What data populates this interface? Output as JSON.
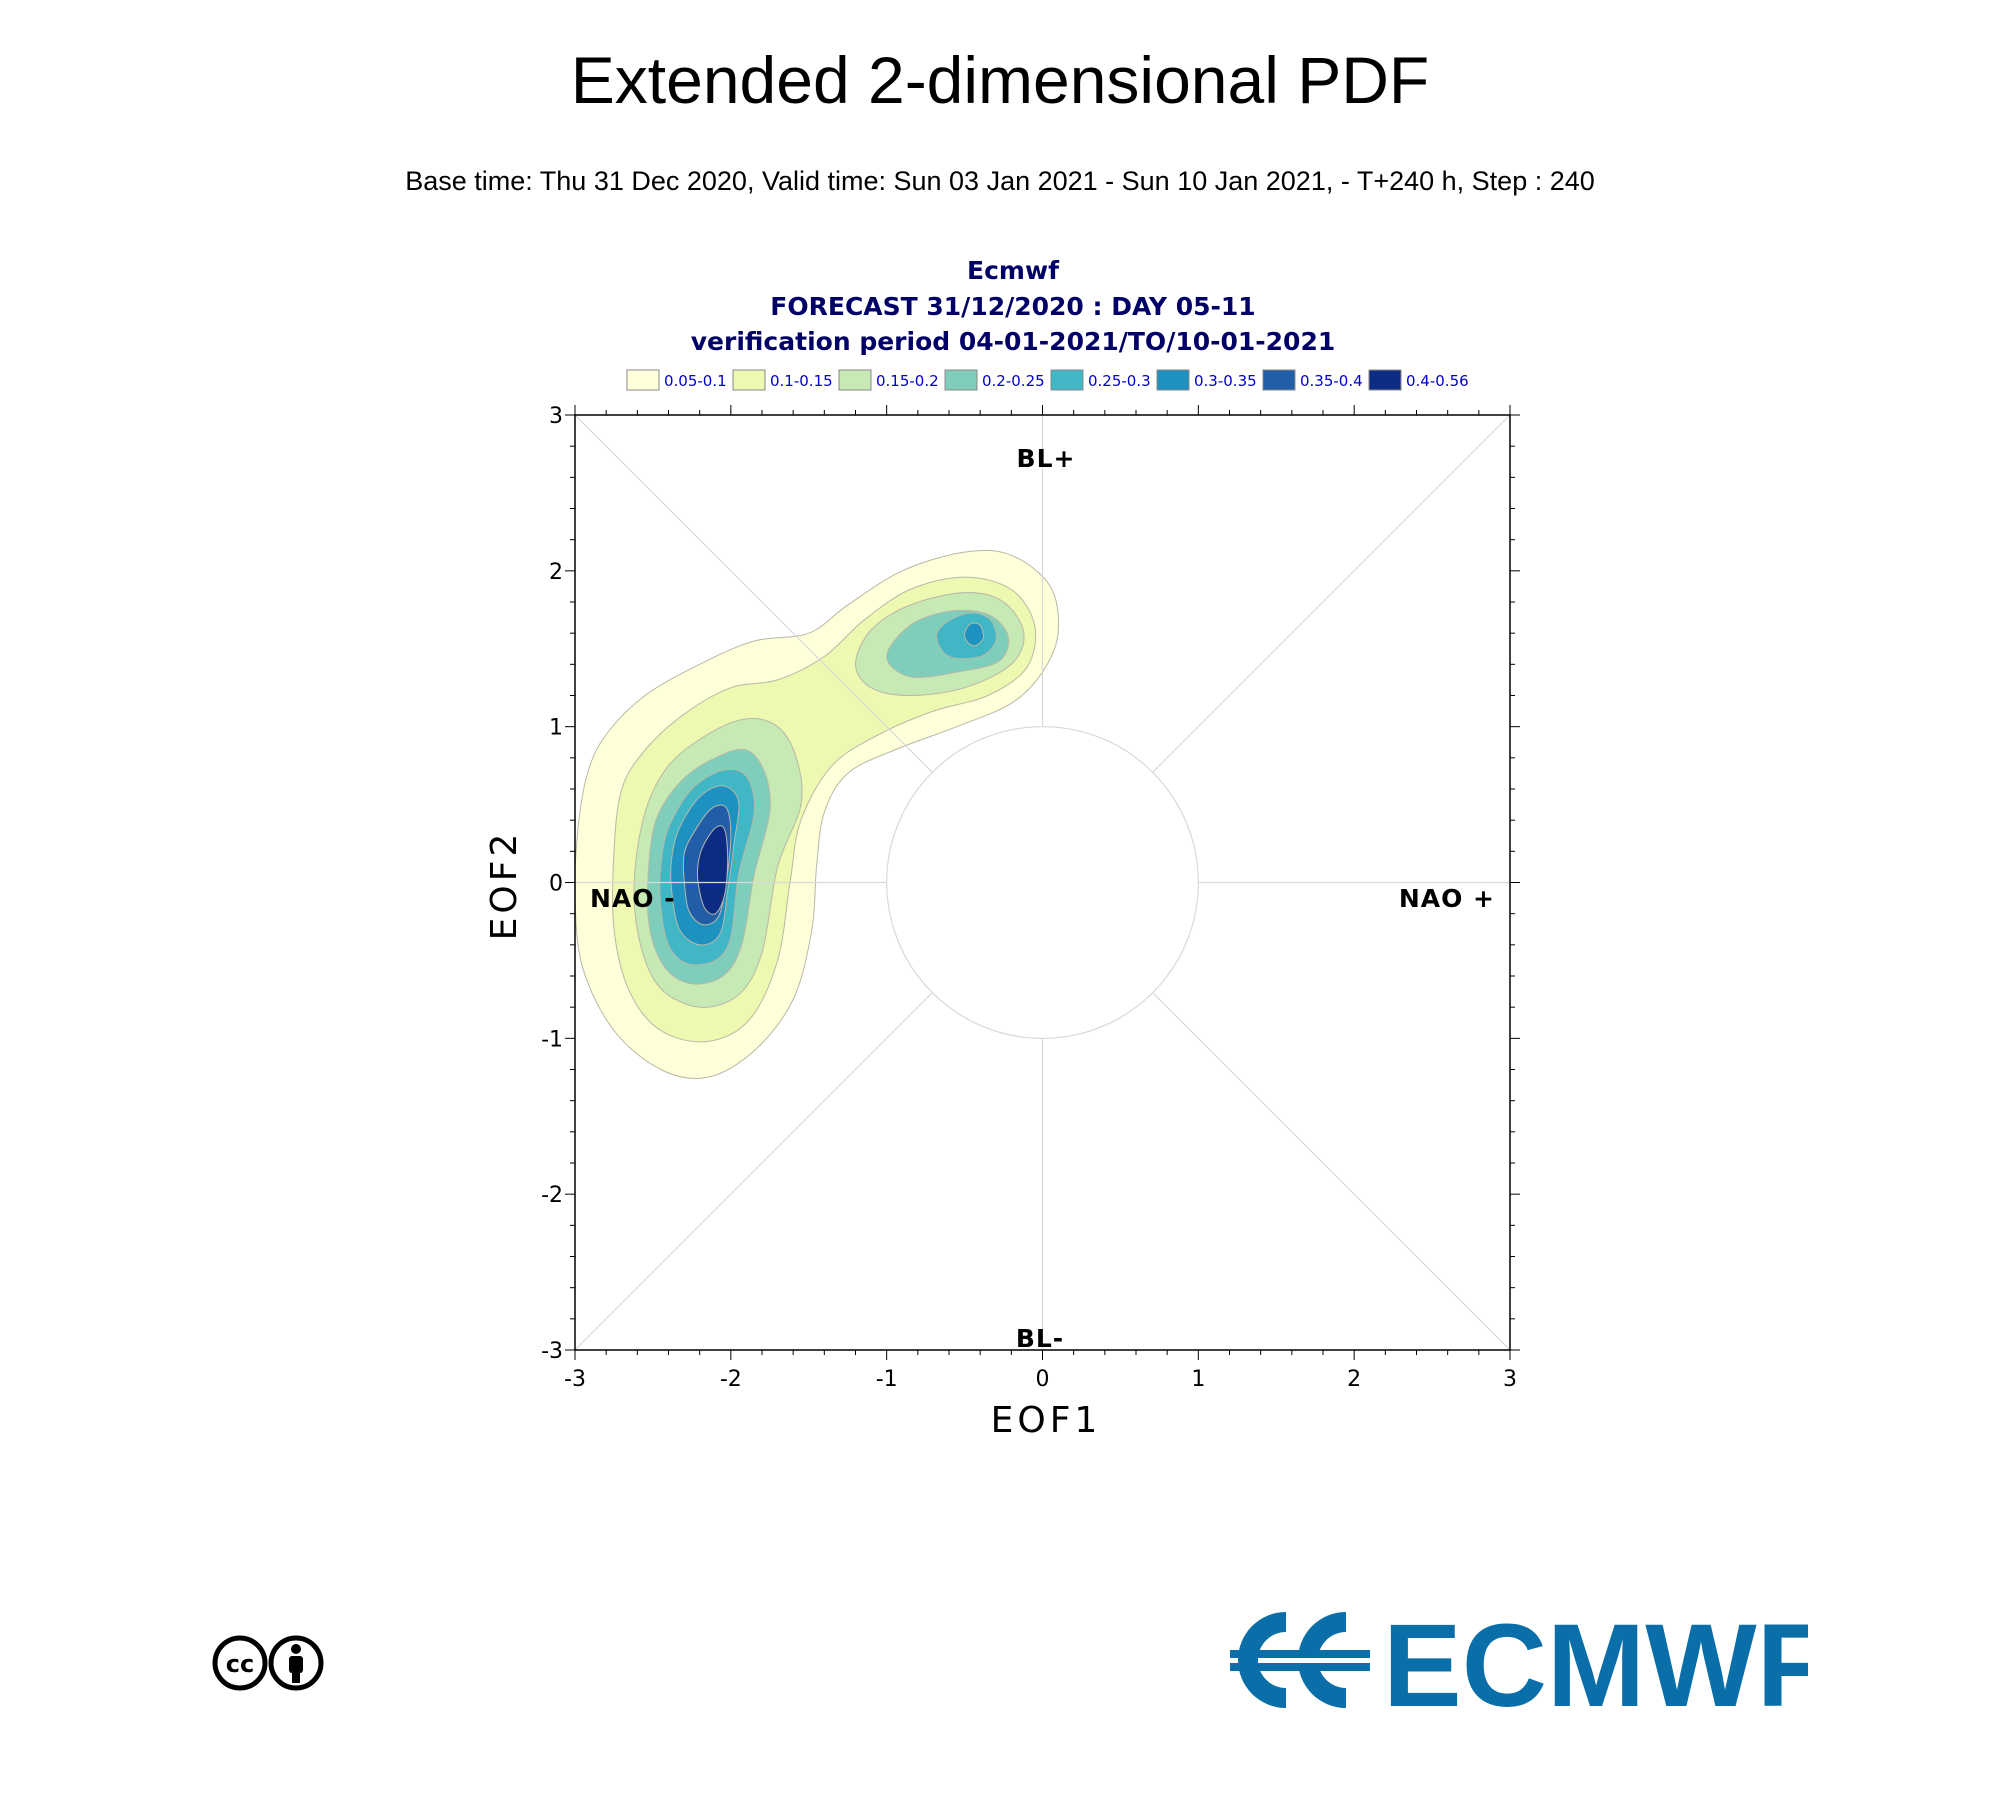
{
  "header": {
    "title": "Extended 2-dimensional PDF",
    "subtitle": "Base time: Thu 31 Dec 2020, Valid time: Sun 03 Jan 2021 - Sun 10 Jan 2021, - T+240 h, Step : 240"
  },
  "plot_titles": {
    "line1": "Ecmwf",
    "line2": "FORECAST 31/12/2020 : DAY 05-11",
    "line3": "verification period 04-01-2021/TO/10-01-2021"
  },
  "regimes": {
    "bl_plus": "BL+",
    "bl_minus": "BL-",
    "nao_minus": "NAO -",
    "nao_plus": "NAO +"
  },
  "logo": {
    "text": "ECMWF",
    "color": "#0a6ea8",
    "cc_label": "cc"
  },
  "chart_data": {
    "type": "contour",
    "xlabel": "EOF1",
    "ylabel": "EOF2",
    "xlim": [
      -3,
      3
    ],
    "ylim": [
      -3,
      3
    ],
    "xticks": [
      -3,
      -2,
      -1,
      0,
      1,
      2,
      3
    ],
    "yticks": [
      -3,
      -2,
      -1,
      0,
      1,
      2,
      3
    ],
    "grid": "diagonals, axes and unit circle",
    "legend_position": "top",
    "levels": [
      {
        "label": "0.05-0.1",
        "color": "#ffffd9"
      },
      {
        "label": "0.1-0.15",
        "color": "#edf8b1"
      },
      {
        "label": "0.15-0.2",
        "color": "#c7e9b4"
      },
      {
        "label": "0.2-0.25",
        "color": "#7fcdbb"
      },
      {
        "label": "0.25-0.3",
        "color": "#41b6c4"
      },
      {
        "label": "0.3-0.35",
        "color": "#1d91c0"
      },
      {
        "label": "0.35-0.4",
        "color": "#225ea8"
      },
      {
        "label": "0.4-0.56",
        "color": "#0c2c84"
      }
    ],
    "contours": [
      {
        "level": 1,
        "points": [
          [
            -2.92,
            0.7
          ],
          [
            -2.8,
            0.95
          ],
          [
            -2.55,
            1.2
          ],
          [
            -2.2,
            1.4
          ],
          [
            -1.85,
            1.55
          ],
          [
            -1.5,
            1.6
          ],
          [
            -1.25,
            1.78
          ],
          [
            -0.9,
            2.0
          ],
          [
            -0.5,
            2.12
          ],
          [
            -0.2,
            2.1
          ],
          [
            0.05,
            1.9
          ],
          [
            0.1,
            1.6
          ],
          [
            0.0,
            1.35
          ],
          [
            -0.2,
            1.15
          ],
          [
            -0.55,
            1.0
          ],
          [
            -0.95,
            0.85
          ],
          [
            -1.25,
            0.7
          ],
          [
            -1.4,
            0.45
          ],
          [
            -1.45,
            0.1
          ],
          [
            -1.48,
            -0.3
          ],
          [
            -1.6,
            -0.75
          ],
          [
            -1.85,
            -1.08
          ],
          [
            -2.15,
            -1.25
          ],
          [
            -2.45,
            -1.2
          ],
          [
            -2.75,
            -0.95
          ],
          [
            -2.95,
            -0.55
          ],
          [
            -3.0,
            -0.1
          ],
          [
            -2.98,
            0.35
          ]
        ]
      },
      {
        "level": 2,
        "points": [
          [
            -2.7,
            0.6
          ],
          [
            -2.55,
            0.85
          ],
          [
            -2.3,
            1.08
          ],
          [
            -2.0,
            1.25
          ],
          [
            -1.7,
            1.3
          ],
          [
            -1.4,
            1.45
          ],
          [
            -1.15,
            1.68
          ],
          [
            -0.85,
            1.88
          ],
          [
            -0.5,
            1.96
          ],
          [
            -0.2,
            1.88
          ],
          [
            -0.05,
            1.65
          ],
          [
            -0.1,
            1.38
          ],
          [
            -0.35,
            1.2
          ],
          [
            -0.7,
            1.1
          ],
          [
            -1.05,
            0.95
          ],
          [
            -1.35,
            0.75
          ],
          [
            -1.55,
            0.4
          ],
          [
            -1.62,
            0.0
          ],
          [
            -1.7,
            -0.5
          ],
          [
            -1.88,
            -0.88
          ],
          [
            -2.15,
            -1.02
          ],
          [
            -2.45,
            -0.95
          ],
          [
            -2.65,
            -0.7
          ],
          [
            -2.75,
            -0.3
          ],
          [
            -2.75,
            0.2
          ]
        ]
      },
      {
        "level": 3,
        "points": [
          [
            -2.55,
            0.45
          ],
          [
            -2.4,
            0.75
          ],
          [
            -2.15,
            0.95
          ],
          [
            -1.9,
            1.05
          ],
          [
            -1.7,
            1.0
          ],
          [
            -1.58,
            0.8
          ],
          [
            -1.55,
            0.5
          ],
          [
            -1.7,
            0.1
          ],
          [
            -1.8,
            -0.45
          ],
          [
            -1.95,
            -0.72
          ],
          [
            -2.2,
            -0.8
          ],
          [
            -2.45,
            -0.68
          ],
          [
            -2.58,
            -0.4
          ],
          [
            -2.62,
            0.0
          ]
        ]
      },
      {
        "level": 3,
        "points": [
          [
            -1.2,
            1.4
          ],
          [
            -1.1,
            1.62
          ],
          [
            -0.85,
            1.78
          ],
          [
            -0.5,
            1.86
          ],
          [
            -0.25,
            1.8
          ],
          [
            -0.12,
            1.6
          ],
          [
            -0.2,
            1.4
          ],
          [
            -0.5,
            1.25
          ],
          [
            -0.85,
            1.2
          ],
          [
            -1.1,
            1.25
          ]
        ]
      },
      {
        "level": 4,
        "points": [
          [
            -2.48,
            0.4
          ],
          [
            -2.32,
            0.65
          ],
          [
            -2.1,
            0.8
          ],
          [
            -1.9,
            0.85
          ],
          [
            -1.78,
            0.7
          ],
          [
            -1.75,
            0.45
          ],
          [
            -1.85,
            0.05
          ],
          [
            -1.93,
            -0.4
          ],
          [
            -2.05,
            -0.6
          ],
          [
            -2.25,
            -0.65
          ],
          [
            -2.42,
            -0.55
          ],
          [
            -2.52,
            -0.3
          ],
          [
            -2.53,
            0.05
          ]
        ]
      },
      {
        "level": 4,
        "points": [
          [
            -1.0,
            1.45
          ],
          [
            -0.85,
            1.65
          ],
          [
            -0.6,
            1.74
          ],
          [
            -0.35,
            1.72
          ],
          [
            -0.22,
            1.58
          ],
          [
            -0.28,
            1.42
          ],
          [
            -0.55,
            1.35
          ],
          [
            -0.85,
            1.32
          ]
        ]
      },
      {
        "level": 5,
        "points": [
          [
            -2.4,
            0.35
          ],
          [
            -2.25,
            0.6
          ],
          [
            -2.05,
            0.72
          ],
          [
            -1.9,
            0.68
          ],
          [
            -1.85,
            0.45
          ],
          [
            -1.95,
            0.05
          ],
          [
            -2.0,
            -0.35
          ],
          [
            -2.1,
            -0.5
          ],
          [
            -2.28,
            -0.52
          ],
          [
            -2.4,
            -0.4
          ],
          [
            -2.45,
            -0.15
          ],
          [
            -2.45,
            0.1
          ]
        ]
      },
      {
        "level": 5,
        "points": [
          [
            -0.68,
            1.58
          ],
          [
            -0.6,
            1.68
          ],
          [
            -0.45,
            1.73
          ],
          [
            -0.33,
            1.68
          ],
          [
            -0.3,
            1.55
          ],
          [
            -0.4,
            1.45
          ],
          [
            -0.6,
            1.45
          ]
        ]
      },
      {
        "level": 6,
        "points": [
          [
            -2.33,
            0.35
          ],
          [
            -2.2,
            0.55
          ],
          [
            -2.05,
            0.62
          ],
          [
            -1.95,
            0.52
          ],
          [
            -1.98,
            0.25
          ],
          [
            -2.02,
            -0.05
          ],
          [
            -2.07,
            -0.33
          ],
          [
            -2.2,
            -0.4
          ],
          [
            -2.33,
            -0.3
          ],
          [
            -2.38,
            -0.05
          ],
          [
            -2.38,
            0.15
          ]
        ]
      },
      {
        "level": 6,
        "points": [
          [
            -0.5,
            1.6
          ],
          [
            -0.46,
            1.66
          ],
          [
            -0.4,
            1.65
          ],
          [
            -0.38,
            1.57
          ],
          [
            -0.43,
            1.52
          ],
          [
            -0.48,
            1.54
          ]
        ]
      },
      {
        "level": 7,
        "points": [
          [
            -2.25,
            0.3
          ],
          [
            -2.13,
            0.47
          ],
          [
            -2.03,
            0.48
          ],
          [
            -2.0,
            0.3
          ],
          [
            -2.03,
            0.0
          ],
          [
            -2.08,
            -0.22
          ],
          [
            -2.18,
            -0.27
          ],
          [
            -2.27,
            -0.18
          ],
          [
            -2.3,
            0.02
          ],
          [
            -2.3,
            0.18
          ]
        ]
      },
      {
        "level": 8,
        "points": [
          [
            -2.18,
            0.23
          ],
          [
            -2.1,
            0.35
          ],
          [
            -2.04,
            0.34
          ],
          [
            -2.02,
            0.15
          ],
          [
            -2.04,
            -0.08
          ],
          [
            -2.1,
            -0.2
          ],
          [
            -2.17,
            -0.16
          ],
          [
            -2.21,
            0.0
          ],
          [
            -2.21,
            0.12
          ]
        ]
      }
    ]
  }
}
